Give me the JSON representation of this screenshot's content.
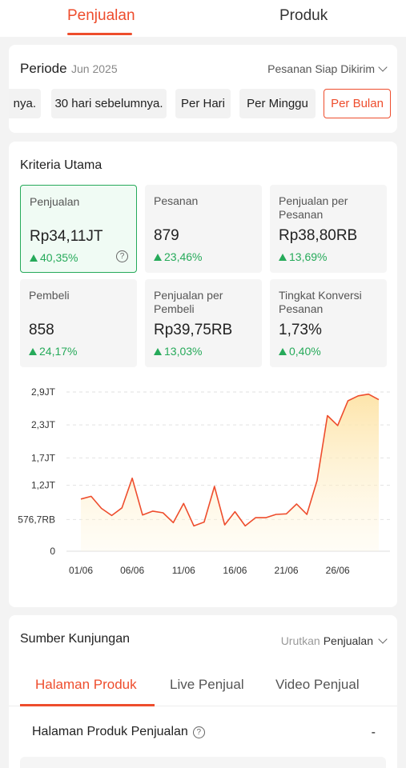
{
  "tabs": [
    "Penjualan",
    "Produk"
  ],
  "periode": {
    "label": "Periode",
    "value": "Jun 2025",
    "status_filter": "Pesanan Siap Dikirim",
    "chips": [
      {
        "label": "nya.",
        "active": false
      },
      {
        "label": "30 hari sebelumnya.",
        "active": false
      },
      {
        "label": "Per Hari",
        "active": false
      },
      {
        "label": "Per Minggu",
        "active": false
      },
      {
        "label": "Per Bulan",
        "active": true
      }
    ]
  },
  "kriteria": {
    "title": "Kriteria Utama",
    "metrics": [
      {
        "label": "Penjualan",
        "value": "Rp34,11JT",
        "change": "40,35%",
        "active": true
      },
      {
        "label": "Pesanan",
        "value": "879",
        "change": "23,46%"
      },
      {
        "label": "Penjualan per Pesanan",
        "value": "Rp38,80RB",
        "change": "13,69%"
      },
      {
        "label": "Pembeli",
        "value": "858",
        "change": "24,17%"
      },
      {
        "label": "Penjualan per Pembeli",
        "value": "Rp39,75RB",
        "change": "13,03%"
      },
      {
        "label": "Tingkat Konversi Pesanan",
        "value": "1,73%",
        "change": "0,40%"
      }
    ]
  },
  "chart_data": {
    "type": "area",
    "title": "",
    "xlabel": "",
    "ylabel": "",
    "y_ticks": [
      {
        "label": "0",
        "value": 0
      },
      {
        "label": "576,7RB",
        "value": 576700
      },
      {
        "label": "1,2JT",
        "value": 1200000
      },
      {
        "label": "1,7JT",
        "value": 1700000
      },
      {
        "label": "2,3JT",
        "value": 2300000
      },
      {
        "label": "2,9JT",
        "value": 2900000
      }
    ],
    "ylim": [
      0,
      2900000
    ],
    "x_ticks": [
      "01/06",
      "06/06",
      "11/06",
      "16/06",
      "21/06",
      "26/06"
    ],
    "tick_days": [
      1,
      6,
      11,
      16,
      21,
      26
    ],
    "x": [
      1,
      2,
      3,
      4,
      5,
      6,
      7,
      8,
      9,
      10,
      11,
      12,
      13,
      14,
      15,
      16,
      17,
      18,
      19,
      20,
      21,
      22,
      23,
      24,
      25,
      26,
      27,
      28,
      29,
      30
    ],
    "values": [
      950000,
      1000000,
      780000,
      650000,
      790000,
      1330000,
      660000,
      730000,
      700000,
      520000,
      870000,
      460000,
      530000,
      1180000,
      480000,
      720000,
      460000,
      610000,
      610000,
      670000,
      680000,
      860000,
      670000,
      1290000,
      2470000,
      2290000,
      2740000,
      2830000,
      2860000,
      2760000
    ],
    "color": "#ee4d2d",
    "fill": "#fde8b3",
    "grid": true
  },
  "sumber": {
    "title": "Sumber Kunjungan",
    "sort_prefix": "Urutkan",
    "sort_value": "Penjualan",
    "tabs": [
      {
        "label": "Halaman Produk",
        "active": true
      },
      {
        "label": "Live Penjual",
        "active": false
      },
      {
        "label": "Video Penjual",
        "active": false
      }
    ],
    "list_title": "Halaman Produk Penjualan",
    "list_value": "-"
  }
}
